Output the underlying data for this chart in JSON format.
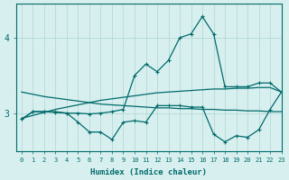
{
  "x": [
    0,
    1,
    2,
    3,
    4,
    5,
    6,
    7,
    8,
    9,
    10,
    11,
    12,
    13,
    14,
    15,
    16,
    17,
    18,
    19,
    20,
    21,
    22,
    23
  ],
  "line_rising": [
    2.93,
    2.97,
    3.01,
    3.05,
    3.08,
    3.11,
    3.14,
    3.17,
    3.19,
    3.21,
    3.23,
    3.25,
    3.27,
    3.28,
    3.29,
    3.3,
    3.31,
    3.32,
    3.32,
    3.33,
    3.33,
    3.34,
    3.34,
    3.28
  ],
  "line_falling": [
    3.28,
    3.25,
    3.22,
    3.2,
    3.18,
    3.16,
    3.14,
    3.12,
    3.11,
    3.1,
    3.09,
    3.08,
    3.07,
    3.07,
    3.06,
    3.06,
    3.05,
    3.05,
    3.04,
    3.04,
    3.03,
    3.03,
    3.02,
    3.02
  ],
  "line_peak": [
    2.92,
    3.02,
    3.02,
    3.01,
    3.0,
    3.0,
    2.99,
    3.0,
    3.02,
    3.05,
    3.5,
    3.65,
    3.55,
    3.7,
    4.0,
    4.05,
    4.28,
    4.05,
    3.35,
    3.35,
    3.35,
    3.4,
    3.4,
    3.28
  ],
  "line_dip": [
    2.92,
    3.02,
    3.02,
    3.02,
    3.0,
    2.88,
    2.75,
    2.75,
    2.65,
    2.88,
    2.9,
    2.88,
    3.1,
    3.1,
    3.1,
    3.08,
    3.08,
    2.72,
    2.62,
    2.7,
    2.68,
    2.78,
    3.05,
    3.28
  ],
  "bg_color": "#d7efee",
  "line_color": "#006b6b",
  "grid_color": "#aed4d2",
  "xlabel": "Humidex (Indice chaleur)",
  "yticks": [
    3,
    4
  ],
  "xlim": [
    -0.5,
    23
  ],
  "ylim": [
    2.5,
    4.45
  ],
  "title": ""
}
